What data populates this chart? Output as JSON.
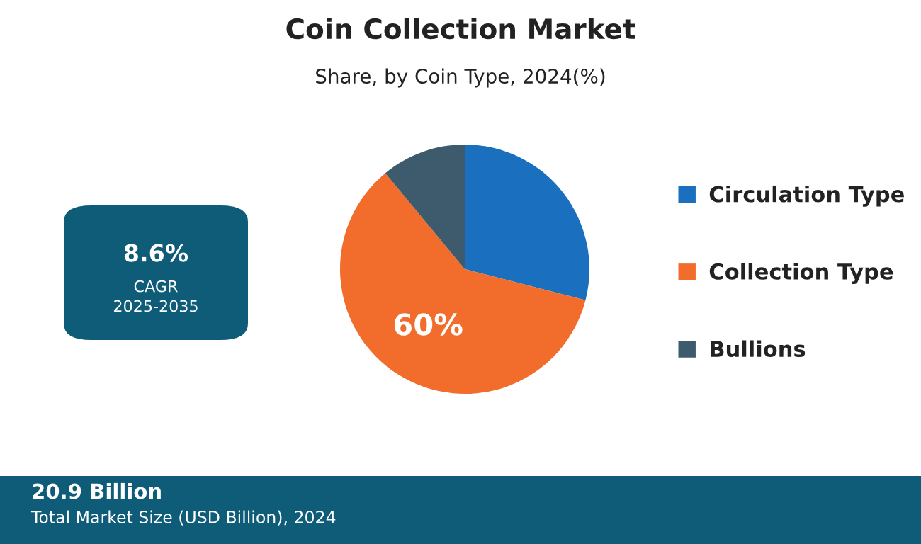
{
  "chart_data": {
    "type": "pie",
    "title": "Coin Collection Market",
    "subtitle": "Share, by Coin Type, 2024(%)",
    "categories": [
      "Circulation Type",
      "Collection Type",
      "Bullions"
    ],
    "values": [
      29,
      60,
      11
    ],
    "colors": [
      "#1a6fbf",
      "#f26c2c",
      "#3e5b6e"
    ],
    "value_labels": [
      null,
      "60%",
      null
    ],
    "legend": "right",
    "annotations": [
      "8.6%",
      "CAGR",
      "2025-2035",
      "20.9 Billion",
      "Total Market Size (USD Billion), 2024"
    ]
  }
}
